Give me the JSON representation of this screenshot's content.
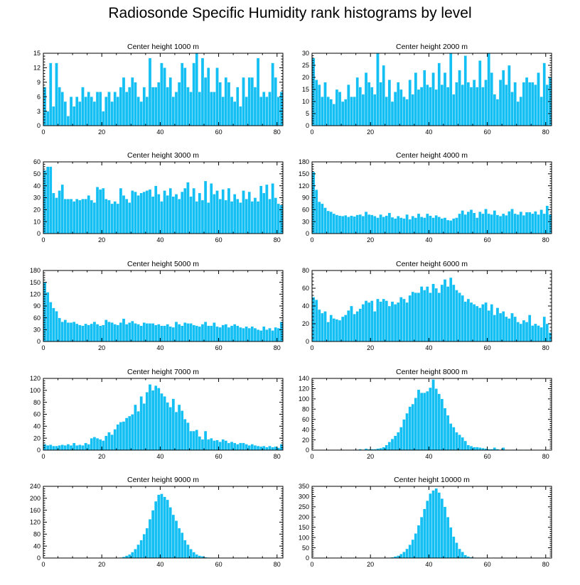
{
  "title": "Radiosonde Specific Humidity rank histograms by level",
  "colors": {
    "bar": "#13bff3",
    "axis": "#000000",
    "background": "#ffffff"
  },
  "chart_data": [
    {
      "type": "bar",
      "title": "Center height 1000 m",
      "x_ticks": [
        0,
        20,
        40,
        60,
        80
      ],
      "xlim": [
        0,
        82
      ],
      "y_ticks": [
        0,
        3,
        6,
        9,
        12,
        15
      ],
      "ylim": [
        0,
        15
      ],
      "values": [
        8,
        3,
        13,
        4,
        13,
        8,
        7,
        5,
        2,
        6,
        4,
        6,
        5,
        8,
        6,
        7,
        6,
        5,
        7,
        7,
        3,
        6,
        7,
        5,
        7,
        6,
        8,
        10,
        7,
        8,
        10,
        9,
        6,
        5,
        8,
        6,
        14,
        8,
        8,
        9,
        13,
        12,
        8,
        10,
        6,
        7,
        9,
        13,
        12,
        8,
        7,
        13,
        15,
        7,
        14,
        10,
        12,
        7,
        7,
        12,
        9,
        6,
        10,
        9,
        6,
        5,
        8,
        4,
        10,
        6,
        10,
        10,
        8,
        14,
        6,
        7,
        6,
        7,
        13,
        10,
        6,
        7
      ]
    },
    {
      "type": "bar",
      "title": "Center height 2000 m",
      "x_ticks": [
        0,
        20,
        40,
        60,
        80
      ],
      "xlim": [
        0,
        82
      ],
      "y_ticks": [
        0,
        5,
        10,
        15,
        20,
        25,
        30
      ],
      "ylim": [
        0,
        30
      ],
      "values": [
        28,
        19,
        17,
        12,
        18,
        12,
        11,
        9,
        15,
        14,
        10,
        11,
        17,
        12,
        12,
        20,
        16,
        13,
        22,
        18,
        16,
        13,
        30,
        18,
        25,
        12,
        19,
        10,
        14,
        18,
        15,
        12,
        11,
        19,
        13,
        22,
        15,
        16,
        23,
        17,
        16,
        22,
        15,
        26,
        17,
        22,
        16,
        30,
        13,
        18,
        23,
        17,
        29,
        18,
        16,
        19,
        16,
        27,
        16,
        19,
        30,
        22,
        13,
        11,
        19,
        23,
        17,
        25,
        14,
        18,
        10,
        12,
        18,
        20,
        18,
        18,
        17,
        22,
        12,
        26,
        17,
        20
      ]
    },
    {
      "type": "bar",
      "title": "Center height 3000 m",
      "x_ticks": [
        0,
        20,
        40,
        60,
        80
      ],
      "xlim": [
        0,
        82
      ],
      "y_ticks": [
        0,
        10,
        20,
        30,
        40,
        50,
        60
      ],
      "ylim": [
        0,
        60
      ],
      "values": [
        53,
        56,
        56,
        34,
        30,
        36,
        41,
        29,
        29,
        29,
        27,
        29,
        28,
        29,
        29,
        32,
        28,
        26,
        39,
        37,
        38,
        29,
        28,
        25,
        27,
        25,
        38,
        32,
        29,
        26,
        36,
        35,
        32,
        34,
        35,
        36,
        37,
        31,
        40,
        33,
        27,
        36,
        32,
        38,
        31,
        33,
        29,
        35,
        38,
        43,
        31,
        38,
        27,
        34,
        28,
        44,
        26,
        42,
        33,
        36,
        29,
        37,
        28,
        38,
        27,
        33,
        29,
        26,
        36,
        29,
        35,
        27,
        30,
        27,
        40,
        34,
        41,
        29,
        42,
        30,
        25,
        24
      ]
    },
    {
      "type": "bar",
      "title": "Center height 4000 m",
      "x_ticks": [
        0,
        20,
        40,
        60,
        80
      ],
      "xlim": [
        0,
        82
      ],
      "y_ticks": [
        0,
        30,
        60,
        90,
        120,
        150,
        180
      ],
      "ylim": [
        0,
        180
      ],
      "values": [
        155,
        110,
        80,
        75,
        65,
        57,
        55,
        50,
        47,
        45,
        44,
        46,
        42,
        45,
        43,
        47,
        48,
        44,
        55,
        48,
        47,
        44,
        40,
        48,
        42,
        45,
        52,
        41,
        38,
        44,
        40,
        38,
        48,
        36,
        44,
        40,
        50,
        42,
        40,
        50,
        45,
        40,
        46,
        42,
        38,
        40,
        34,
        33,
        38,
        40,
        50,
        58,
        48,
        55,
        60,
        52,
        40,
        55,
        50,
        62,
        50,
        48,
        58,
        47,
        44,
        50,
        46,
        56,
        62,
        50,
        48,
        55,
        46,
        54,
        54,
        50,
        56,
        48,
        60,
        50,
        70,
        48
      ]
    },
    {
      "type": "bar",
      "title": "Center height 5000 m",
      "x_ticks": [
        0,
        20,
        40,
        60,
        80
      ],
      "xlim": [
        0,
        82
      ],
      "y_ticks": [
        0,
        30,
        60,
        90,
        120,
        150,
        180
      ],
      "ylim": [
        0,
        180
      ],
      "values": [
        150,
        125,
        100,
        85,
        77,
        60,
        50,
        55,
        48,
        48,
        50,
        45,
        42,
        40,
        45,
        42,
        45,
        50,
        44,
        40,
        42,
        55,
        50,
        48,
        44,
        42,
        48,
        58,
        44,
        48,
        52,
        46,
        44,
        40,
        48,
        46,
        46,
        46,
        42,
        44,
        40,
        40,
        44,
        38,
        36,
        50,
        44,
        40,
        48,
        46,
        46,
        42,
        40,
        38,
        44,
        50,
        40,
        40,
        48,
        38,
        36,
        42,
        44,
        36,
        40,
        44,
        40,
        36,
        34,
        38,
        34,
        38,
        34,
        30,
        28,
        38,
        30,
        34,
        28,
        36,
        34,
        50
      ]
    },
    {
      "type": "bar",
      "title": "Center height 6000 m",
      "x_ticks": [
        0,
        20,
        40,
        60,
        80
      ],
      "xlim": [
        0,
        82
      ],
      "y_ticks": [
        0,
        20,
        40,
        60,
        80
      ],
      "ylim": [
        0,
        80
      ],
      "values": [
        50,
        47,
        36,
        32,
        34,
        22,
        30,
        26,
        25,
        24,
        28,
        30,
        35,
        40,
        31,
        34,
        37,
        42,
        46,
        44,
        46,
        34,
        48,
        45,
        48,
        46,
        40,
        45,
        42,
        44,
        50,
        48,
        44,
        52,
        56,
        55,
        55,
        62,
        58,
        62,
        55,
        65,
        60,
        55,
        64,
        70,
        62,
        72,
        64,
        58,
        55,
        52,
        45,
        48,
        44,
        42,
        40,
        38,
        42,
        44,
        35,
        42,
        30,
        38,
        32,
        34,
        28,
        26,
        32,
        28,
        22,
        20,
        24,
        22,
        30,
        18,
        20,
        18,
        16,
        28,
        20,
        10
      ]
    },
    {
      "type": "bar",
      "title": "Center height 7000 m",
      "x_ticks": [
        0,
        20,
        40,
        60,
        80
      ],
      "xlim": [
        0,
        82
      ],
      "y_ticks": [
        0,
        20,
        40,
        60,
        80,
        100,
        120
      ],
      "ylim": [
        0,
        120
      ],
      "values": [
        10,
        8,
        9,
        7,
        7,
        8,
        9,
        8,
        10,
        8,
        12,
        8,
        9,
        8,
        12,
        10,
        20,
        22,
        20,
        18,
        16,
        24,
        30,
        26,
        35,
        43,
        47,
        48,
        54,
        57,
        60,
        76,
        65,
        90,
        78,
        97,
        110,
        100,
        108,
        104,
        95,
        90,
        80,
        72,
        86,
        64,
        76,
        66,
        52,
        46,
        32,
        32,
        34,
        23,
        18,
        32,
        18,
        20,
        16,
        17,
        14,
        18,
        16,
        12,
        14,
        12,
        10,
        12,
        12,
        10,
        8,
        10,
        8,
        7,
        6,
        7,
        5,
        7,
        5,
        6,
        4,
        10
      ]
    },
    {
      "type": "bar",
      "title": "Center height 8000 m",
      "x_ticks": [
        0,
        20,
        40,
        60,
        80
      ],
      "xlim": [
        0,
        82
      ],
      "y_ticks": [
        0,
        20,
        40,
        60,
        80,
        100,
        120,
        140
      ],
      "ylim": [
        0,
        140
      ],
      "values": [
        0,
        0,
        0,
        0,
        0,
        0,
        0,
        0,
        0,
        0,
        0,
        0,
        0,
        0,
        1,
        1,
        2,
        1,
        3,
        2,
        2,
        2,
        3,
        4,
        6,
        10,
        16,
        22,
        28,
        35,
        45,
        60,
        72,
        85,
        90,
        102,
        118,
        112,
        112,
        115,
        122,
        138,
        120,
        110,
        100,
        82,
        68,
        52,
        45,
        35,
        30,
        25,
        18,
        10,
        8,
        6,
        6,
        5,
        4,
        3,
        2,
        2,
        5,
        2,
        1,
        5,
        1,
        0,
        1,
        1,
        0,
        1,
        0,
        1,
        0,
        0,
        0,
        0,
        0,
        0,
        0,
        0
      ]
    },
    {
      "type": "bar",
      "title": "Center height 9000 m",
      "x_ticks": [
        0,
        20,
        40,
        60,
        80
      ],
      "xlim": [
        0,
        82
      ],
      "y_ticks": [
        0,
        40,
        80,
        120,
        160,
        200,
        240
      ],
      "ylim": [
        0,
        240
      ],
      "values": [
        0,
        0,
        0,
        0,
        0,
        0,
        0,
        0,
        0,
        0,
        0,
        0,
        0,
        0,
        0,
        0,
        0,
        0,
        0,
        0,
        0,
        0,
        0,
        0,
        1,
        1,
        2,
        4,
        8,
        12,
        20,
        30,
        45,
        60,
        80,
        100,
        130,
        160,
        190,
        212,
        215,
        205,
        195,
        170,
        145,
        125,
        100,
        85,
        60,
        45,
        30,
        20,
        12,
        8,
        6,
        3,
        2,
        1,
        1,
        1,
        0,
        0,
        0,
        0,
        0,
        0,
        0,
        0,
        0,
        0,
        0,
        0,
        0,
        0,
        0,
        0,
        0,
        0,
        0,
        0,
        0,
        0
      ]
    },
    {
      "type": "bar",
      "title": "Center height 10000 m",
      "x_ticks": [
        0,
        20,
        40,
        60,
        80
      ],
      "xlim": [
        0,
        82
      ],
      "y_ticks": [
        0,
        50,
        100,
        150,
        200,
        250,
        300,
        350
      ],
      "ylim": [
        0,
        350
      ],
      "values": [
        0,
        0,
        0,
        0,
        0,
        0,
        0,
        0,
        0,
        0,
        0,
        0,
        0,
        0,
        0,
        0,
        0,
        0,
        0,
        0,
        0,
        0,
        0,
        0,
        0,
        1,
        2,
        4,
        8,
        12,
        20,
        30,
        45,
        65,
        90,
        120,
        160,
        200,
        240,
        280,
        315,
        330,
        340,
        320,
        290,
        250,
        200,
        150,
        105,
        75,
        45,
        30,
        15,
        8,
        4,
        2,
        1,
        1,
        0,
        0,
        0,
        0,
        0,
        0,
        0,
        0,
        0,
        0,
        0,
        0,
        0,
        0,
        0,
        0,
        0,
        0,
        0,
        0,
        0,
        0,
        0,
        0
      ]
    }
  ]
}
